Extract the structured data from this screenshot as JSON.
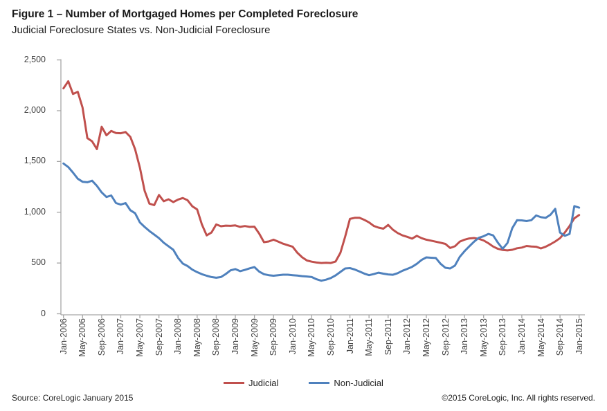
{
  "header": {
    "title": "Figure 1 – Number of Mortgaged Homes per Completed Foreclosure",
    "subtitle": "Judicial Foreclosure States vs. Non-Judicial Foreclosure"
  },
  "footer": {
    "source": "Source: CoreLogic  January 2015",
    "copyright": "©2015 CoreLogic, Inc. All rights reserved."
  },
  "chart_data": {
    "type": "line",
    "title": "Figure 1 – Number of Mortgaged Homes per Completed Foreclosure",
    "subtitle": "Judicial Foreclosure States vs. Non-Judicial Foreclosure",
    "xlabel": "",
    "ylabel": "",
    "x_start": "Jan-2006",
    "x_end": "Jan-2015",
    "x_interval_months": 1,
    "x_tick_labels": [
      "Jan-2006",
      "May-2006",
      "Sep-2006",
      "Jan-2007",
      "May-2007",
      "Sep-2007",
      "Jan-2008",
      "May-2008",
      "Sep-2008",
      "Jan-2009",
      "May-2009",
      "Sep-2009",
      "Jan-2010",
      "May-2010",
      "Sep-2010",
      "Jan-2011",
      "May-2011",
      "Sep-2011",
      "Jan-2012",
      "May-2012",
      "Sep-2012",
      "Jan-2013",
      "May-2013",
      "Sep-2013",
      "Jan-2014",
      "May-2014",
      "Sep-2014",
      "Jan-2015"
    ],
    "x_tick_every_points": 4,
    "y_ticks": [
      0,
      500,
      1000,
      1500,
      2000,
      2500
    ],
    "y_tick_labels": [
      "0",
      "500",
      "1,000",
      "1,500",
      "2,000",
      "2,500"
    ],
    "ylim": [
      0,
      2500
    ],
    "grid": false,
    "legend_position": "bottom-center",
    "axis_color": "#a6a6a6",
    "series": [
      {
        "name": "Judicial",
        "color": "#C0504D",
        "values": [
          2220,
          2290,
          2165,
          2185,
          2030,
          1730,
          1698,
          1622,
          1842,
          1758,
          1800,
          1780,
          1778,
          1790,
          1742,
          1620,
          1440,
          1210,
          1085,
          1070,
          1170,
          1108,
          1128,
          1100,
          1125,
          1140,
          1118,
          1058,
          1028,
          880,
          772,
          800,
          880,
          862,
          868,
          866,
          870,
          856,
          864,
          856,
          858,
          790,
          705,
          712,
          730,
          710,
          690,
          675,
          660,
          600,
          556,
          525,
          513,
          505,
          500,
          503,
          500,
          515,
          600,
          760,
          935,
          945,
          945,
          925,
          900,
          865,
          848,
          838,
          875,
          828,
          795,
          772,
          758,
          740,
          768,
          745,
          730,
          720,
          710,
          700,
          688,
          648,
          665,
          710,
          730,
          742,
          746,
          738,
          722,
          695,
          662,
          640,
          628,
          624,
          630,
          645,
          652,
          668,
          662,
          660,
          644,
          660,
          685,
          712,
          745,
          800,
          865,
          940,
          972
        ]
      },
      {
        "name": "Non-Judicial",
        "color": "#4F81BD",
        "values": [
          1480,
          1445,
          1390,
          1330,
          1300,
          1295,
          1310,
          1260,
          1195,
          1150,
          1165,
          1090,
          1075,
          1090,
          1020,
          990,
          900,
          855,
          815,
          780,
          745,
          700,
          665,
          630,
          550,
          495,
          470,
          435,
          410,
          390,
          375,
          362,
          355,
          362,
          392,
          428,
          440,
          420,
          432,
          448,
          460,
          415,
          390,
          380,
          375,
          380,
          385,
          385,
          380,
          376,
          371,
          367,
          362,
          340,
          326,
          336,
          352,
          378,
          412,
          446,
          450,
          436,
          416,
          396,
          380,
          391,
          405,
          395,
          388,
          384,
          400,
          424,
          442,
          462,
          492,
          530,
          555,
          552,
          549,
          492,
          453,
          446,
          475,
          560,
          616,
          664,
          710,
          748,
          764,
          786,
          772,
          700,
          640,
          697,
          843,
          921,
          920,
          913,
          922,
          968,
          951,
          945,
          975,
          1034,
          800,
          768,
          786,
          1060,
          1045
        ]
      }
    ]
  }
}
